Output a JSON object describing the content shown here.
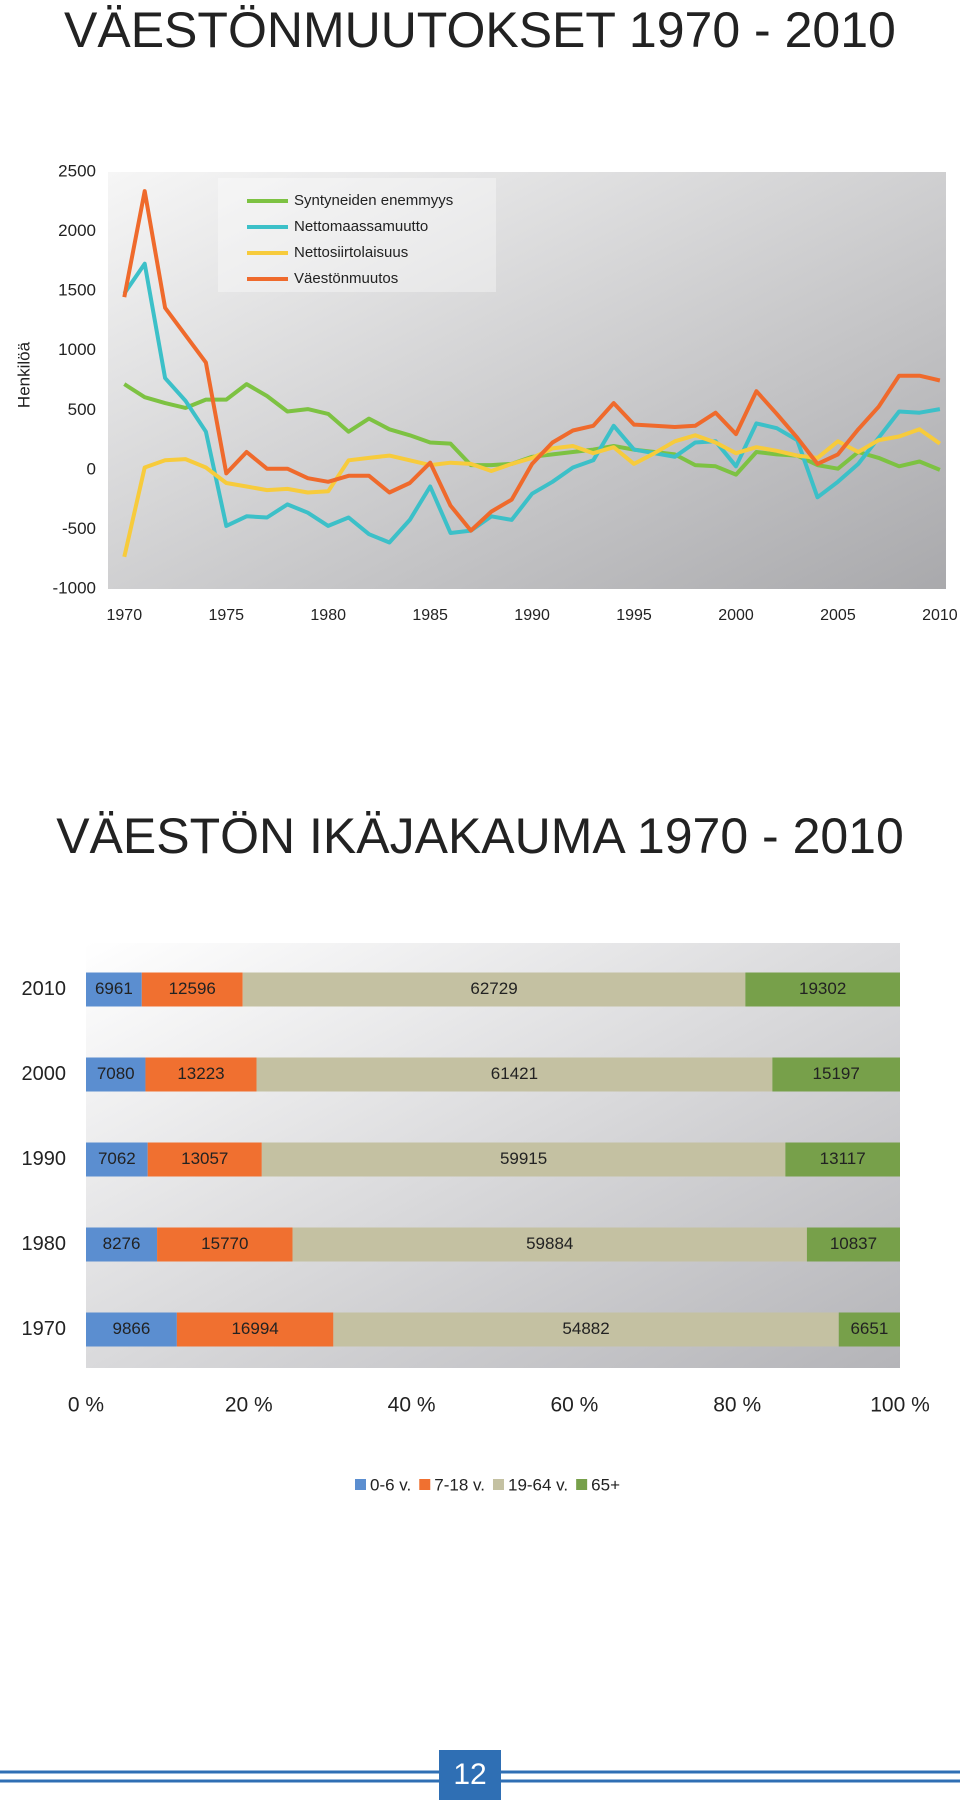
{
  "chart_data": [
    {
      "type": "line",
      "title": "VÄESTÖNMUUTOKSET 1970 - 2010",
      "ylabel": "Henkilöä",
      "x": [
        1970,
        1971,
        1972,
        1973,
        1974,
        1975,
        1976,
        1977,
        1978,
        1979,
        1980,
        1981,
        1982,
        1983,
        1984,
        1985,
        1986,
        1987,
        1988,
        1989,
        1990,
        1991,
        1992,
        1993,
        1994,
        1995,
        1996,
        1997,
        1998,
        1999,
        2000,
        2001,
        2002,
        2003,
        2004,
        2005,
        2006,
        2007,
        2008,
        2009,
        2010
      ],
      "series": [
        {
          "name": "Syntyneiden enemmyys",
          "color": "#7dc242",
          "values": [
            720,
            610,
            560,
            520,
            590,
            590,
            720,
            620,
            490,
            510,
            470,
            320,
            430,
            340,
            290,
            230,
            220,
            40,
            40,
            50,
            110,
            130,
            150,
            170,
            200,
            170,
            150,
            130,
            40,
            30,
            -40,
            150,
            130,
            120,
            40,
            10,
            150,
            100,
            30,
            70,
            0
          ]
        },
        {
          "name": "Nettomaassamuutto",
          "color": "#3cc0c8",
          "values": [
            1480,
            1730,
            770,
            580,
            320,
            -470,
            -390,
            -400,
            -290,
            -360,
            -470,
            -400,
            -540,
            -610,
            -420,
            -140,
            -530,
            -510,
            -390,
            -420,
            -200,
            -100,
            20,
            80,
            370,
            170,
            140,
            110,
            230,
            240,
            30,
            390,
            350,
            250,
            -230,
            -100,
            50,
            270,
            490,
            480,
            510
          ]
        },
        {
          "name": "Nettosiirtolaisuus",
          "color": "#f7cb3c",
          "values": [
            -730,
            20,
            80,
            90,
            20,
            -110,
            -140,
            -170,
            -160,
            -190,
            -180,
            80,
            100,
            120,
            80,
            40,
            60,
            50,
            -10,
            50,
            100,
            180,
            200,
            140,
            190,
            50,
            140,
            240,
            290,
            230,
            140,
            190,
            160,
            120,
            100,
            240,
            150,
            250,
            280,
            340,
            220
          ]
        },
        {
          "name": "Väestönmuutos",
          "color": "#ef6a2c",
          "values": [
            1450,
            2340,
            1360,
            1130,
            900,
            -30,
            150,
            10,
            10,
            -70,
            -100,
            -50,
            -50,
            -190,
            -110,
            60,
            -300,
            -510,
            -350,
            -250,
            50,
            230,
            330,
            370,
            560,
            380,
            370,
            360,
            370,
            480,
            300,
            660,
            470,
            270,
            50,
            130,
            340,
            530,
            790,
            790,
            750
          ]
        }
      ],
      "xlim": [
        1969.2,
        2010.3
      ],
      "xticks": [
        1970,
        1975,
        1980,
        1985,
        1990,
        1995,
        2000,
        2005,
        2010
      ],
      "ylim": [
        -1000,
        2500
      ],
      "yticks": [
        -1000,
        -500,
        0,
        500,
        1000,
        1500,
        2000,
        2500
      ],
      "legend": "top-left"
    },
    {
      "type": "stacked-bar-percent",
      "title": "VÄESTÖN IKÄJAKAUMA 1970 - 2010",
      "categories": [
        "2010",
        "2000",
        "1990",
        "1980",
        "1970"
      ],
      "series": [
        {
          "name": "0-6 v.",
          "color": "#5b8ed0",
          "values": [
            6961,
            7080,
            7062,
            8276,
            9866
          ]
        },
        {
          "name": "7-18 v.",
          "color": "#f07030",
          "values": [
            12596,
            13223,
            13057,
            15770,
            16994
          ]
        },
        {
          "name": "19-64 v.",
          "color": "#c4c1a2",
          "values": [
            62729,
            61421,
            59915,
            59884,
            54882
          ]
        },
        {
          "name": "65+",
          "color": "#77a04a",
          "values": [
            19302,
            15197,
            13117,
            10837,
            6651
          ]
        }
      ],
      "xlim": [
        0,
        100
      ],
      "xticks": [
        {
          "value": 0,
          "label": "0 %"
        },
        {
          "value": 20,
          "label": "20 %"
        },
        {
          "value": 40,
          "label": "40 %"
        },
        {
          "value": 60,
          "label": "60 %"
        },
        {
          "value": 80,
          "label": "80 %"
        },
        {
          "value": 100,
          "label": "100 %"
        }
      ],
      "legend": "bottom"
    }
  ],
  "page_number": "12"
}
